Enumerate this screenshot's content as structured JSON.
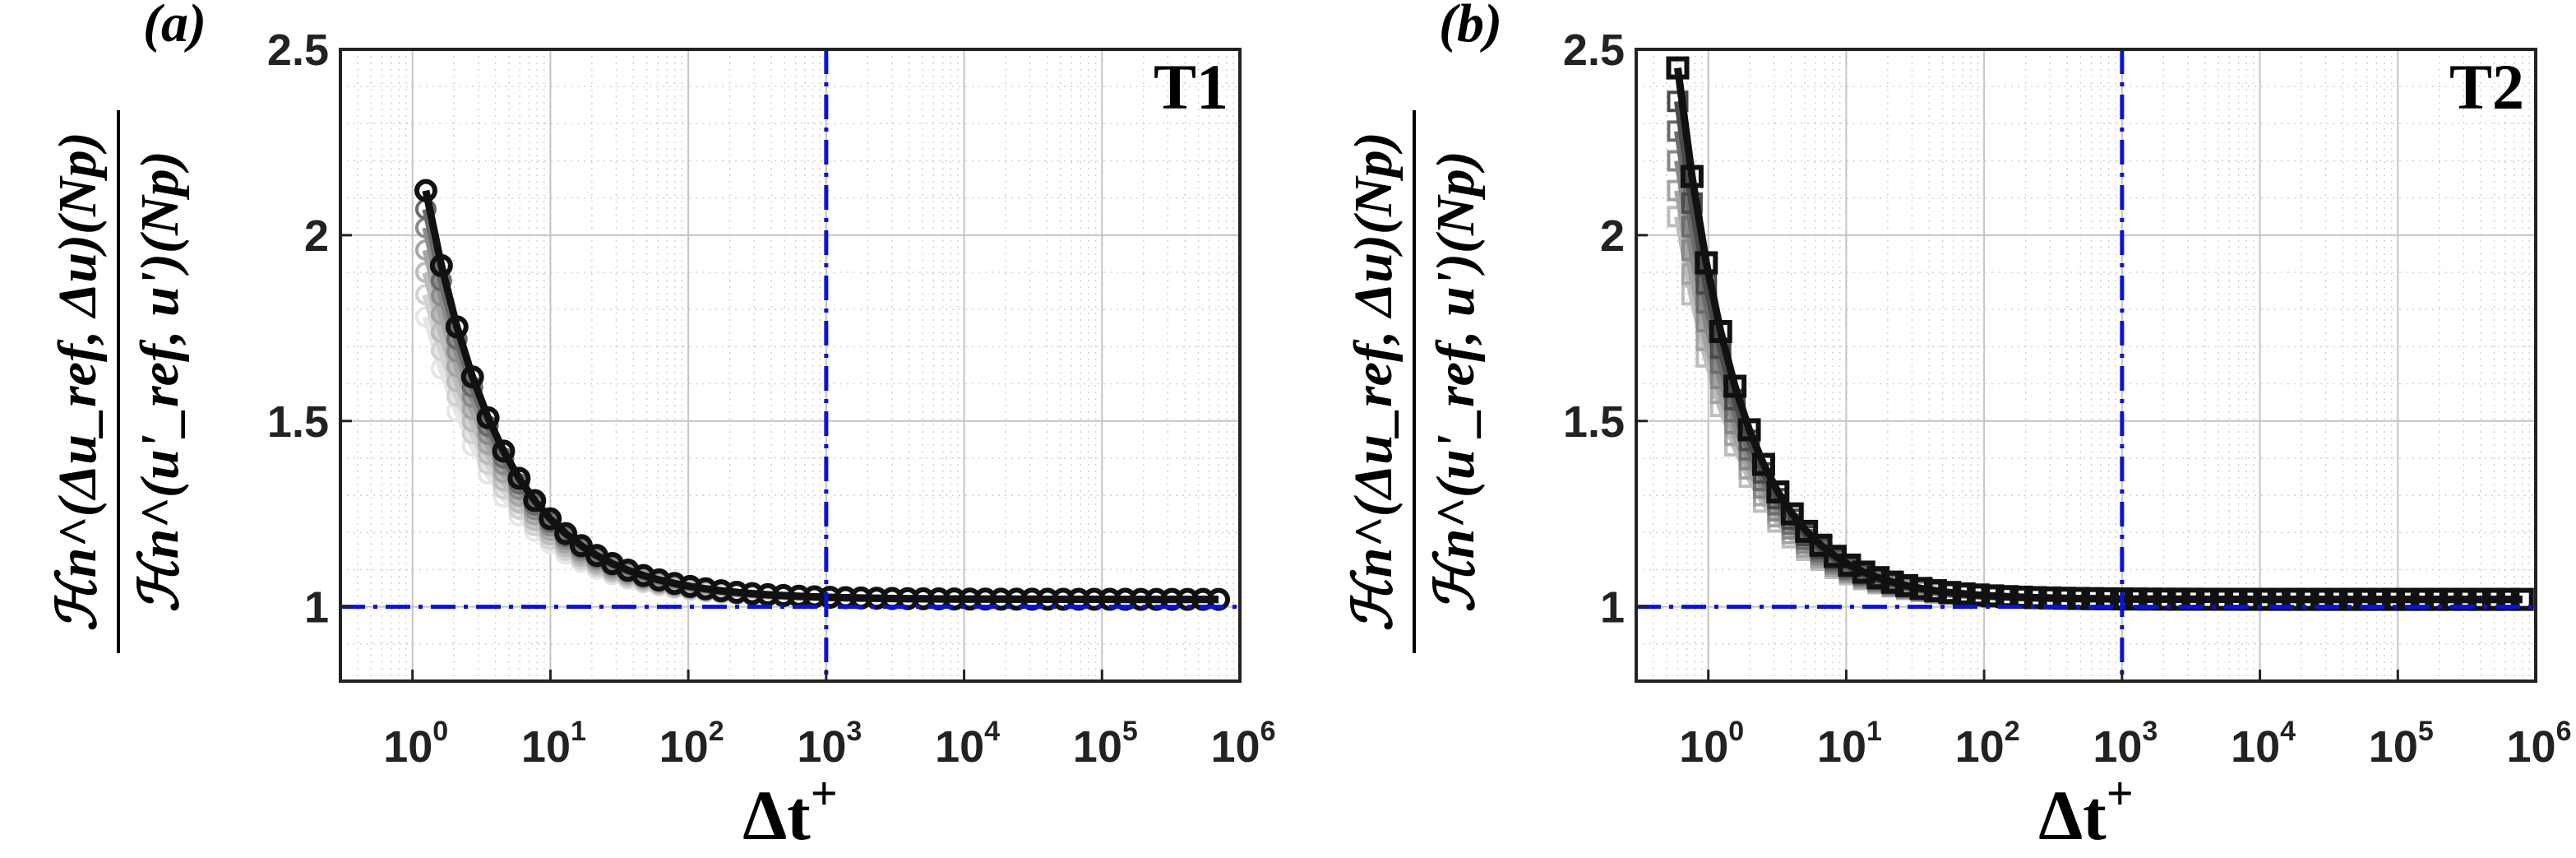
{
  "chart_data": [
    {
      "type": "line",
      "panel_label": "(a)",
      "tag": "T1",
      "xscale": "log",
      "xlim": [
        0.3,
        1000000
      ],
      "ylim": [
        0.8,
        2.5
      ],
      "x_ticks": [
        {
          "base": "10",
          "exp": "0"
        },
        {
          "base": "10",
          "exp": "1"
        },
        {
          "base": "10",
          "exp": "2"
        },
        {
          "base": "10",
          "exp": "3"
        },
        {
          "base": "10",
          "exp": "4"
        },
        {
          "base": "10",
          "exp": "5"
        },
        {
          "base": "10",
          "exp": "6"
        }
      ],
      "y_ticks": [
        "1",
        "1.5",
        "2",
        "2.5"
      ],
      "xlabel": {
        "main": "Δt",
        "sup": "+"
      },
      "ylabel": {
        "numerator": "ℋn^(Δu_ref, Δu)(Np)",
        "denominator": "ℋn^(u'_ref, u')(Np)"
      },
      "ref_vline_x": 1000,
      "ref_hline_y": 1,
      "marker": "circle",
      "x_start": 1.25,
      "x_end": 700000,
      "n_points": 52,
      "curve_fn": {
        "asymptote": 1.02,
        "start_value": 2.12,
        "decay_per_decade": 1.8
      },
      "series": [
        {
          "name": "curve-01",
          "start_value": 1.78,
          "color": "#e6e6e6"
        },
        {
          "name": "curve-02",
          "start_value": 1.84,
          "color": "#d2d2d2"
        },
        {
          "name": "curve-03",
          "start_value": 1.9,
          "color": "#bcbcbc"
        },
        {
          "name": "curve-04",
          "start_value": 1.96,
          "color": "#a6a6a6"
        },
        {
          "name": "curve-05",
          "start_value": 2.02,
          "color": "#8c8c8c"
        },
        {
          "name": "curve-06",
          "start_value": 2.07,
          "color": "#6a6a6a"
        },
        {
          "name": "curve-07",
          "start_value": 2.12,
          "color": "#111111"
        }
      ]
    },
    {
      "type": "line",
      "panel_label": "(b)",
      "tag": "T2",
      "xscale": "log",
      "xlim": [
        0.3,
        1000000
      ],
      "ylim": [
        0.8,
        2.5
      ],
      "x_ticks": [
        {
          "base": "10",
          "exp": "0"
        },
        {
          "base": "10",
          "exp": "1"
        },
        {
          "base": "10",
          "exp": "2"
        },
        {
          "base": "10",
          "exp": "3"
        },
        {
          "base": "10",
          "exp": "4"
        },
        {
          "base": "10",
          "exp": "5"
        },
        {
          "base": "10",
          "exp": "6"
        }
      ],
      "y_ticks": [
        "1",
        "1.5",
        "2",
        "2.5"
      ],
      "xlabel": {
        "main": "Δt",
        "sup": "+"
      },
      "ylabel": {
        "numerator": "ℋn^(Δu_ref, Δu)(Np)",
        "denominator": "ℋn^(u'_ref, u')(Np)"
      },
      "ref_vline_x": 1000,
      "ref_hline_y": 1,
      "marker": "square",
      "x_start": 0.6,
      "x_end": 800000,
      "n_points": 60,
      "curve_fn": {
        "asymptote": 1.02,
        "start_value": 2.45,
        "decay_per_decade": 2.2
      },
      "series": [
        {
          "name": "curve-01",
          "start_value": 2.05,
          "color": "#bdbdbd"
        },
        {
          "name": "curve-02",
          "start_value": 2.12,
          "color": "#a3a3a3"
        },
        {
          "name": "curve-03",
          "start_value": 2.2,
          "color": "#888888"
        },
        {
          "name": "curve-04",
          "start_value": 2.28,
          "color": "#6c6c6c"
        },
        {
          "name": "curve-05",
          "start_value": 2.36,
          "color": "#4a4a4a"
        },
        {
          "name": "curve-06",
          "start_value": 2.45,
          "color": "#111111"
        }
      ]
    }
  ]
}
